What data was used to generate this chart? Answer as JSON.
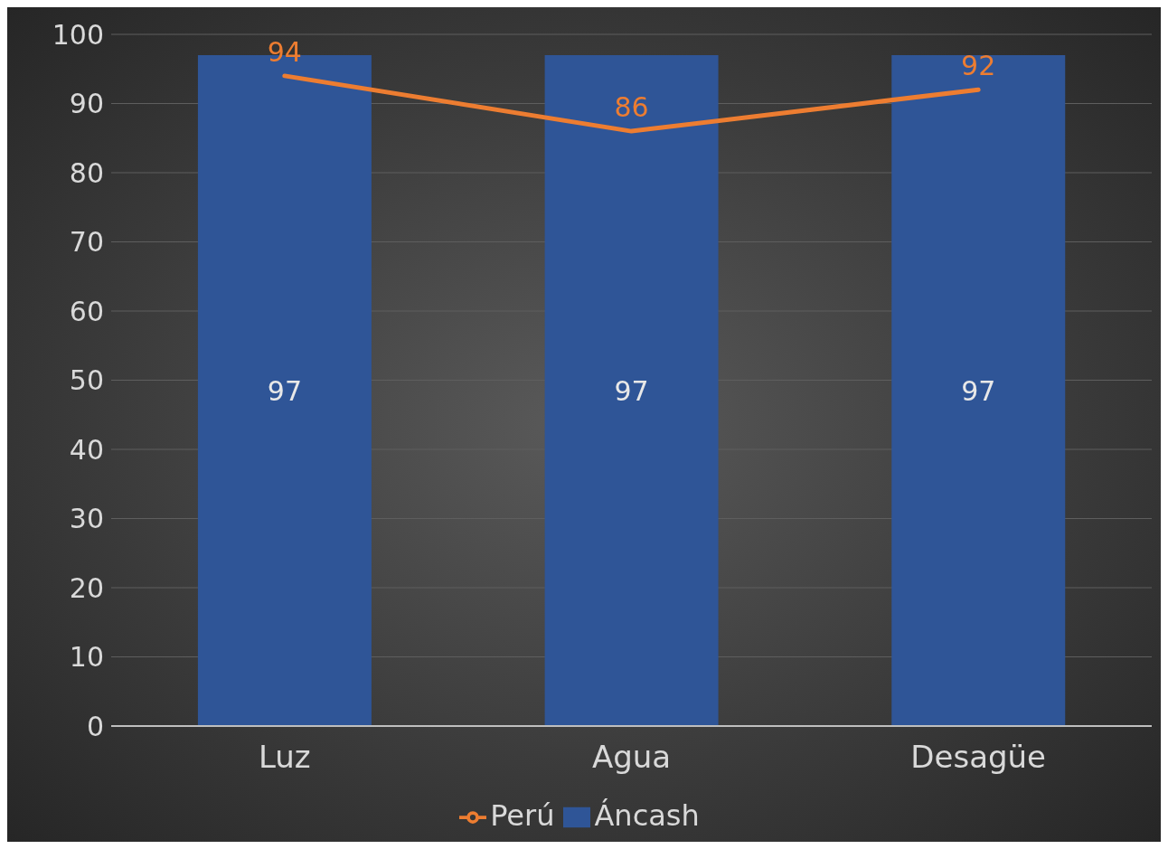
{
  "chart_data": {
    "type": "bar",
    "categories": [
      "Luz",
      "Agua",
      "Desagüe"
    ],
    "series": [
      {
        "name": "Áncash",
        "color": "#2f5597",
        "values": [
          97,
          97,
          97
        ]
      },
      {
        "name": "Perú",
        "type": "line",
        "color": "#ed7d31",
        "values": [
          94,
          86,
          92
        ]
      }
    ],
    "ylim": [
      0,
      100
    ],
    "yticks": [
      0,
      10,
      20,
      30,
      40,
      50,
      60,
      70,
      80,
      90,
      100
    ],
    "grid": "y",
    "legend": "bottom",
    "data_labels": true,
    "marker": "none",
    "line_style": "solid"
  }
}
